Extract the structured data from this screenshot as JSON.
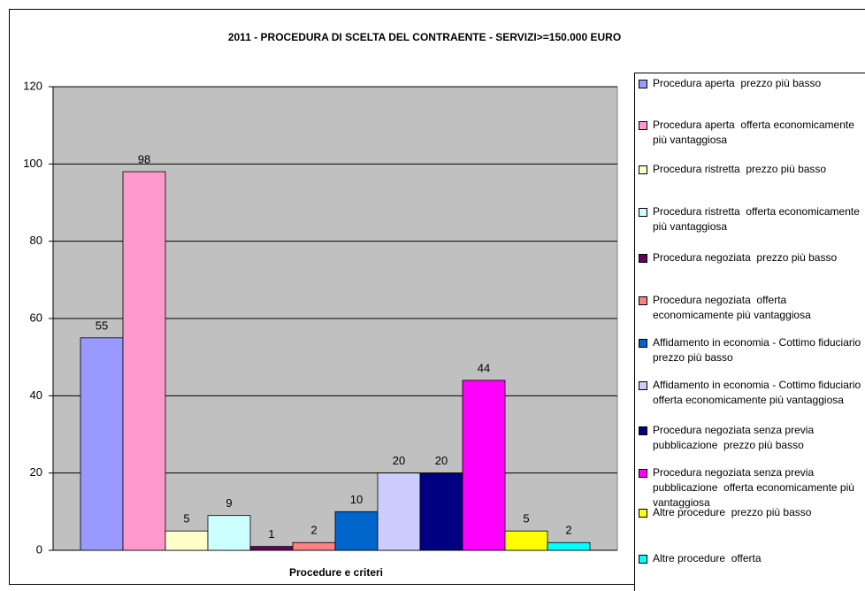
{
  "chart_data": {
    "type": "bar",
    "title": "2011 - PROCEDURA DI SCELTA DEL CONTRAENTE - SERVIZI>=150.000 EURO",
    "x_label": "Procedure e criteri",
    "categories": [
      null
    ],
    "ylim": [
      0,
      120
    ],
    "yticks": [
      0,
      20,
      40,
      60,
      80,
      100,
      120
    ],
    "grid": true,
    "legend": "right",
    "series": [
      {
        "name": "Procedura aperta  prezzo più basso",
        "color": "#9999ff",
        "values": [
          55
        ]
      },
      {
        "name": "Procedura aperta  offerta economicamente più vantaggiosa",
        "color": "#ff99cc",
        "values": [
          98
        ]
      },
      {
        "name": "Procedura ristretta  prezzo più basso",
        "color": "#ffffcc",
        "values": [
          5
        ]
      },
      {
        "name": "Procedura ristretta  offerta economicamente più vantaggiosa",
        "color": "#ccffff",
        "values": [
          9
        ]
      },
      {
        "name": "Procedura negoziata  prezzo più basso",
        "color": "#660066",
        "values": [
          1
        ]
      },
      {
        "name": "Procedura negoziata  offerta economicamente più vantaggiosa",
        "color": "#ff8080",
        "values": [
          2
        ]
      },
      {
        "name": "Affidamento in economia - Cottimo fiduciario  prezzo più basso",
        "color": "#0066cc",
        "values": [
          10
        ]
      },
      {
        "name": "Affidamento in economia - Cottimo fiduciario  offerta economicamente più vantaggiosa",
        "color": "#ccccff",
        "values": [
          20
        ]
      },
      {
        "name": "Procedura negoziata senza previa pubblicazione  prezzo più basso",
        "color": "#000080",
        "values": [
          20
        ]
      },
      {
        "name": "Procedura negoziata senza previa pubblicazione  offerta economicamente più vantaggiosa",
        "color": "#ff00ff",
        "values": [
          44
        ]
      },
      {
        "name": "Altre procedure  prezzo più basso",
        "color": "#ffff00",
        "values": [
          5
        ]
      },
      {
        "name": "Altre procedure  offerta",
        "color": "#00ffff",
        "values": [
          2
        ]
      }
    ]
  }
}
